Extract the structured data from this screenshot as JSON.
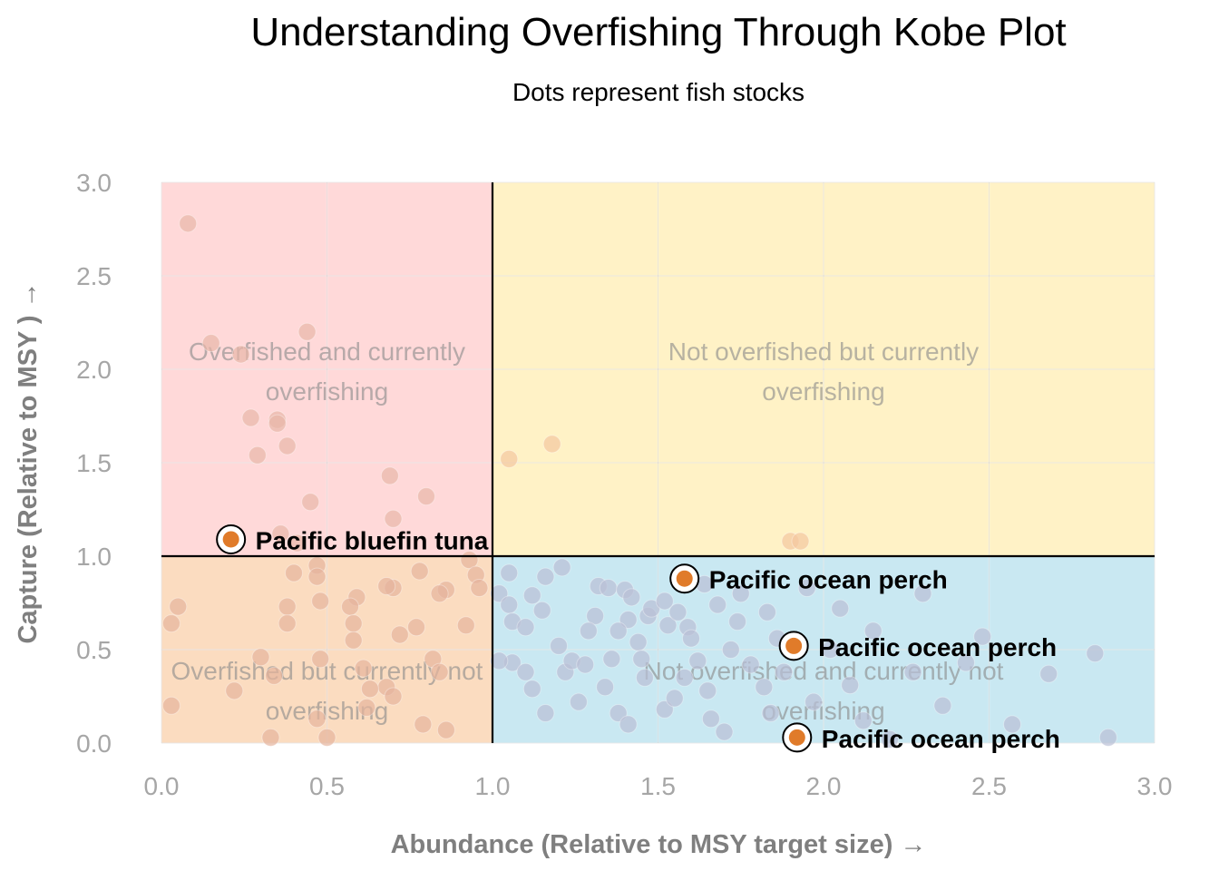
{
  "chart_data": {
    "type": "scatter",
    "title": "Understanding Overfishing Through Kobe Plot",
    "subtitle": "Dots represent fish stocks",
    "xlabel": "Abundance (Relative to MSY target size) →",
    "ylabel": "Capture (Relative to MSY ) →",
    "xlim": [
      0,
      3
    ],
    "ylim": [
      0,
      3
    ],
    "xticks": [
      "0.0",
      "0.5",
      "1.0",
      "1.5",
      "2.0",
      "2.5",
      "3.0"
    ],
    "yticks": [
      "0.0",
      "0.5",
      "1.0",
      "1.5",
      "2.0",
      "2.5",
      "3.0"
    ],
    "grid": true,
    "reference_lines": {
      "x": 1.0,
      "y": 1.0
    },
    "quadrants": [
      {
        "label": "Overfished and currently overfishing",
        "x_range": [
          0,
          1
        ],
        "y_range": [
          1,
          3
        ],
        "color": "#ffd9d9"
      },
      {
        "label": "Not overfished but currently overfishing",
        "x_range": [
          1,
          3
        ],
        "y_range": [
          1,
          3
        ],
        "color": "#fff2c6"
      },
      {
        "label": "Overfished but currently not overfishing",
        "x_range": [
          0,
          1
        ],
        "y_range": [
          0,
          1
        ],
        "color": "#fbdcc0"
      },
      {
        "label": "Not overfished and currently not overfishing",
        "x_range": [
          1,
          3
        ],
        "y_range": [
          0,
          1
        ],
        "color": "#c9e8f2"
      }
    ],
    "highlighted": [
      {
        "name": "Pacific bluefin tuna",
        "x": 0.21,
        "y": 1.09
      },
      {
        "name": "Pacific ocean perch",
        "x": 1.58,
        "y": 0.88
      },
      {
        "name": "Pacific ocean perch",
        "x": 1.91,
        "y": 0.52
      },
      {
        "name": "Pacific ocean perch",
        "x": 1.92,
        "y": 0.03
      }
    ],
    "highlight_color": "#e07b2a",
    "series": [
      {
        "points": [
          [
            0.08,
            2.78
          ],
          [
            0.15,
            2.14
          ],
          [
            0.24,
            2.08
          ],
          [
            0.44,
            2.2
          ],
          [
            0.27,
            1.74
          ],
          [
            0.35,
            1.73
          ],
          [
            0.35,
            1.71
          ],
          [
            0.29,
            1.54
          ],
          [
            0.38,
            1.59
          ],
          [
            0.69,
            1.43
          ],
          [
            0.8,
            1.32
          ],
          [
            0.45,
            1.29
          ],
          [
            0.7,
            1.2
          ],
          [
            0.36,
            1.12
          ],
          [
            0.41,
            1.07
          ],
          [
            1.05,
            1.52
          ],
          [
            1.18,
            1.6
          ],
          [
            1.9,
            1.08
          ],
          [
            1.93,
            1.08
          ],
          [
            0.4,
            0.91
          ],
          [
            0.47,
            0.95
          ],
          [
            0.47,
            0.89
          ],
          [
            0.7,
            0.83
          ],
          [
            0.68,
            0.84
          ],
          [
            0.86,
            0.82
          ],
          [
            0.84,
            0.8
          ],
          [
            0.78,
            0.92
          ],
          [
            0.93,
            0.98
          ],
          [
            0.95,
            0.9
          ],
          [
            0.96,
            0.83
          ],
          [
            0.92,
            0.63
          ],
          [
            0.77,
            0.62
          ],
          [
            0.72,
            0.58
          ],
          [
            0.59,
            0.78
          ],
          [
            0.57,
            0.73
          ],
          [
            0.48,
            0.76
          ],
          [
            0.58,
            0.64
          ],
          [
            0.58,
            0.55
          ],
          [
            0.38,
            0.73
          ],
          [
            0.38,
            0.64
          ],
          [
            0.05,
            0.73
          ],
          [
            0.03,
            0.64
          ],
          [
            0.3,
            0.46
          ],
          [
            0.34,
            0.36
          ],
          [
            0.48,
            0.45
          ],
          [
            0.68,
            0.3
          ],
          [
            0.7,
            0.25
          ],
          [
            0.82,
            0.45
          ],
          [
            0.84,
            0.38
          ],
          [
            0.61,
            0.4
          ],
          [
            0.63,
            0.29
          ],
          [
            0.62,
            0.19
          ],
          [
            0.47,
            0.13
          ],
          [
            0.22,
            0.28
          ],
          [
            0.03,
            0.2
          ],
          [
            0.33,
            0.03
          ],
          [
            0.5,
            0.03
          ],
          [
            0.79,
            0.1
          ],
          [
            0.86,
            0.07
          ],
          [
            1.05,
            0.91
          ],
          [
            1.02,
            0.8
          ],
          [
            1.05,
            0.74
          ],
          [
            1.12,
            0.79
          ],
          [
            1.15,
            0.71
          ],
          [
            1.06,
            0.65
          ],
          [
            1.1,
            0.62
          ],
          [
            1.06,
            0.43
          ],
          [
            1.12,
            0.29
          ],
          [
            1.16,
            0.16
          ],
          [
            1.2,
            0.52
          ],
          [
            1.22,
            0.38
          ],
          [
            1.24,
            0.44
          ],
          [
            1.28,
            0.42
          ],
          [
            1.31,
            0.68
          ],
          [
            1.32,
            0.84
          ],
          [
            1.35,
            0.83
          ],
          [
            1.4,
            0.82
          ],
          [
            1.42,
            0.78
          ],
          [
            1.41,
            0.66
          ],
          [
            1.38,
            0.6
          ],
          [
            1.36,
            0.45
          ],
          [
            1.34,
            0.3
          ],
          [
            1.38,
            0.16
          ],
          [
            1.41,
            0.1
          ],
          [
            1.44,
            0.54
          ],
          [
            1.45,
            0.45
          ],
          [
            1.47,
            0.68
          ],
          [
            1.48,
            0.72
          ],
          [
            1.52,
            0.76
          ],
          [
            1.53,
            0.63
          ],
          [
            1.56,
            0.7
          ],
          [
            1.59,
            0.62
          ],
          [
            1.6,
            0.56
          ],
          [
            1.62,
            0.44
          ],
          [
            1.58,
            0.35
          ],
          [
            1.65,
            0.28
          ],
          [
            1.66,
            0.13
          ],
          [
            1.7,
            0.06
          ],
          [
            1.72,
            0.5
          ],
          [
            1.74,
            0.65
          ],
          [
            1.78,
            0.42
          ],
          [
            1.82,
            0.3
          ],
          [
            1.84,
            0.16
          ],
          [
            1.86,
            0.56
          ],
          [
            2.02,
            0.5
          ],
          [
            2.08,
            0.31
          ],
          [
            2.12,
            0.12
          ],
          [
            2.2,
            0.02
          ],
          [
            2.27,
            0.38
          ],
          [
            2.3,
            0.8
          ],
          [
            2.43,
            0.43
          ],
          [
            2.48,
            0.57
          ],
          [
            2.57,
            0.1
          ],
          [
            2.68,
            0.37
          ],
          [
            2.82,
            0.48
          ],
          [
            2.86,
            0.03
          ],
          [
            1.26,
            0.22
          ],
          [
            1.52,
            0.18
          ],
          [
            1.97,
            0.22
          ],
          [
            1.1,
            0.38
          ],
          [
            1.02,
            0.44
          ],
          [
            1.68,
            0.74
          ],
          [
            1.75,
            0.8
          ],
          [
            1.64,
            0.85
          ],
          [
            1.21,
            0.94
          ],
          [
            1.16,
            0.89
          ],
          [
            1.29,
            0.6
          ],
          [
            1.46,
            0.35
          ],
          [
            1.55,
            0.24
          ],
          [
            1.83,
            0.7
          ],
          [
            1.95,
            0.83
          ],
          [
            2.15,
            0.6
          ],
          [
            2.36,
            0.2
          ],
          [
            2.05,
            0.72
          ],
          [
            1.88,
            0.38
          ]
        ]
      }
    ]
  }
}
